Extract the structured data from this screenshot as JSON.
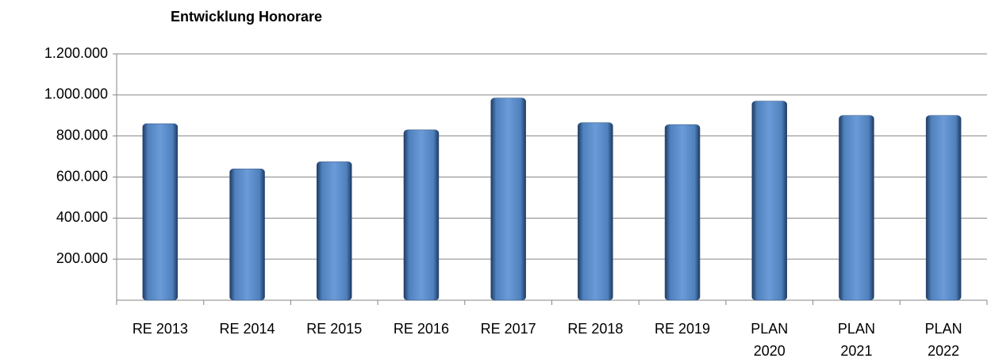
{
  "chart_data": {
    "type": "bar",
    "title": "Entwicklung Honorare",
    "categories": [
      "RE 2013",
      "RE 2014",
      "RE 2015",
      "RE 2016",
      "RE 2017",
      "RE 2018",
      "RE 2019",
      "PLAN 2020",
      "PLAN 2021",
      "PLAN 2022"
    ],
    "values": [
      860000,
      640000,
      675000,
      830000,
      985000,
      865000,
      855000,
      970000,
      900000,
      900000
    ],
    "color": "#4f81bd",
    "ylim": [
      0,
      1200000
    ],
    "yticks": [
      {
        "value": 200000,
        "label": "200.000"
      },
      {
        "value": 400000,
        "label": "400.000"
      },
      {
        "value": 600000,
        "label": "600.000"
      },
      {
        "value": 800000,
        "label": "800.000"
      },
      {
        "value": 1000000,
        "label": "1.000.000"
      },
      {
        "value": 1200000,
        "label": "1.200.000"
      }
    ],
    "grid": true
  }
}
